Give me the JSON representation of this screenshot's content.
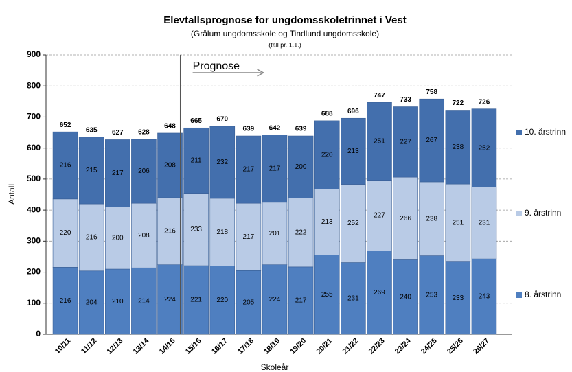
{
  "chart_data": {
    "type": "stacked_bar",
    "title": "Elevtallsprognose for ungdomsskoletrinnet i Vest",
    "subtitle": "(Grålum ungdomsskole og Tindlund ungdomsskole)",
    "note": "(tall pr. 1.1.)",
    "annotation": {
      "text": "Prognose",
      "from": "15/16"
    },
    "xlabel": "Skoleår",
    "ylabel": "Antall",
    "categories": [
      "10/11",
      "11/12",
      "12/13",
      "13/14",
      "14/15",
      "15/16",
      "16/17",
      "17/18",
      "18/19",
      "19/20",
      "20/21",
      "21/22",
      "22/23",
      "23/24",
      "24/25",
      "25/26",
      "26/27"
    ],
    "series": [
      {
        "name": "8. årstrinn",
        "color": "#4f7fc0",
        "values": [
          216,
          204,
          210,
          214,
          224,
          221,
          220,
          205,
          224,
          217,
          255,
          231,
          269,
          240,
          253,
          233,
          243
        ]
      },
      {
        "name": "9. årstrinn",
        "color": "#b9cbe6",
        "values": [
          220,
          216,
          200,
          208,
          216,
          233,
          218,
          217,
          201,
          222,
          213,
          252,
          227,
          266,
          238,
          251,
          231
        ]
      },
      {
        "name": "10. årstrinn",
        "color": "#436fad",
        "values": [
          216,
          215,
          217,
          206,
          208,
          211,
          232,
          217,
          217,
          200,
          220,
          213,
          251,
          227,
          267,
          238,
          252
        ]
      }
    ],
    "totals": [
      652,
      635,
      627,
      628,
      648,
      665,
      670,
      639,
      642,
      639,
      688,
      696,
      747,
      733,
      758,
      722,
      726
    ],
    "ylim": [
      0,
      900
    ],
    "yticks": [
      0,
      100,
      200,
      300,
      400,
      500,
      600,
      700,
      800,
      900
    ],
    "grid": true
  }
}
